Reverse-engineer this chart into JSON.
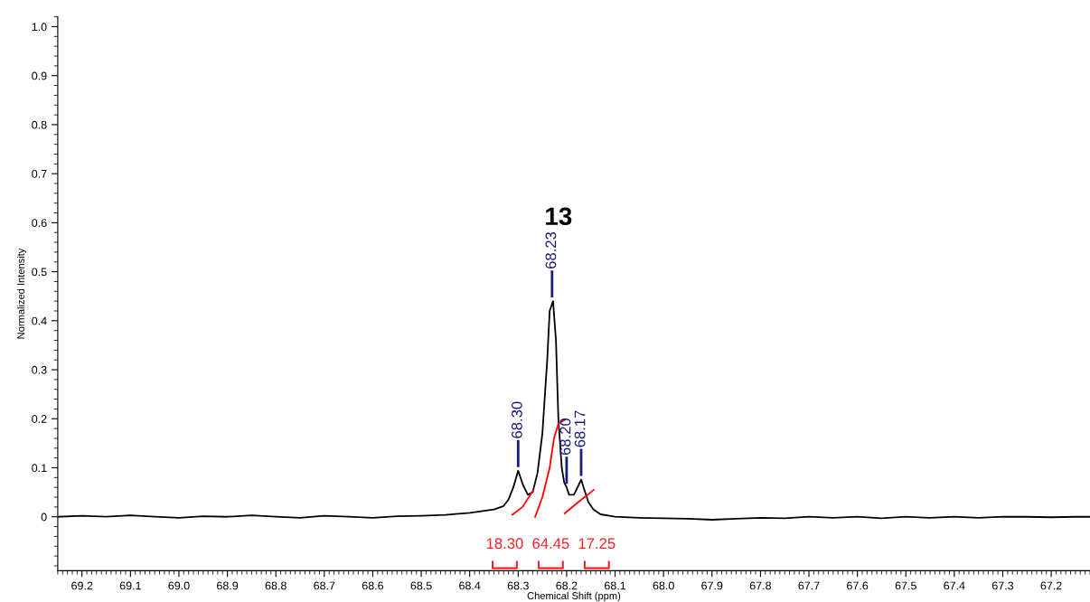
{
  "chart_data": {
    "type": "line",
    "title": "13",
    "xlabel": "Chemical Shift (ppm)",
    "ylabel": "Normalized Intensity",
    "xlim": [
      69.25,
      67.12
    ],
    "ylim": [
      -0.11,
      1.02
    ],
    "xticks": [
      69.2,
      69.1,
      {
        "value": 69.0,
        "label": "69.0"
      },
      68.9,
      68.8,
      68.7,
      68.6,
      68.5,
      68.4,
      68.3,
      68.2,
      68.1,
      {
        "value": 68.0,
        "label": "68.0"
      },
      67.9,
      67.8,
      67.7,
      67.6,
      67.5,
      67.4,
      67.3,
      67.2
    ],
    "yticks": [
      0,
      0.1,
      0.2,
      0.3,
      0.4,
      0.5,
      0.6,
      0.7,
      0.8,
      0.9,
      {
        "value": 1.0,
        "label": "1.0"
      }
    ],
    "grid": false,
    "marker": "none",
    "line_style": "solid",
    "series": [
      {
        "color": "#000000",
        "x": [
          69.25,
          69.2,
          69.15,
          69.1,
          69.05,
          69.0,
          68.95,
          68.9,
          68.85,
          68.8,
          68.75,
          68.7,
          68.65,
          68.6,
          68.55,
          68.5,
          68.45,
          68.4,
          68.37,
          68.35,
          68.33,
          68.32,
          68.31,
          68.3,
          68.29,
          68.28,
          68.27,
          68.26,
          68.25,
          68.24,
          68.235,
          68.228,
          68.222,
          68.217,
          68.21,
          68.205,
          68.2,
          68.195,
          68.185,
          68.175,
          68.17,
          68.165,
          68.155,
          68.145,
          68.13,
          68.1,
          68.05,
          68.0,
          67.95,
          67.9,
          67.85,
          67.8,
          67.75,
          67.7,
          67.65,
          67.6,
          67.55,
          67.5,
          67.45,
          67.4,
          67.35,
          67.3,
          67.25,
          67.2,
          67.15,
          67.12
        ],
        "values": [
          0.0,
          0.002,
          0.0,
          0.003,
          0.0,
          -0.002,
          0.001,
          0.0,
          0.003,
          0.0,
          -0.002,
          0.002,
          0.0,
          -0.002,
          0.001,
          0.002,
          0.004,
          0.008,
          0.012,
          0.015,
          0.022,
          0.035,
          0.06,
          0.094,
          0.065,
          0.045,
          0.05,
          0.09,
          0.17,
          0.32,
          0.42,
          0.44,
          0.36,
          0.2,
          0.1,
          0.07,
          0.06,
          0.045,
          0.045,
          0.065,
          0.076,
          0.06,
          0.03,
          0.015,
          0.005,
          0.0,
          -0.002,
          -0.003,
          -0.004,
          -0.006,
          -0.004,
          -0.002,
          -0.003,
          0.0,
          -0.002,
          0.0,
          -0.003,
          0.0,
          -0.002,
          0.0,
          -0.002,
          0.0,
          0.0,
          -0.001,
          0.0,
          0.0
        ]
      },
      {
        "color": "#ff0000",
        "x": [
          68.312,
          68.291,
          68.269
        ],
        "values": [
          0.004,
          0.02,
          0.054
        ]
      },
      {
        "color": "#ff0000",
        "x": [
          68.265,
          68.25,
          68.235,
          68.226,
          68.217,
          68.204
        ],
        "values": [
          0.0,
          0.04,
          0.1,
          0.16,
          0.19,
          0.198
        ]
      },
      {
        "color": "#ff0000",
        "x": [
          68.204,
          68.176,
          68.144
        ],
        "values": [
          0.007,
          0.03,
          0.055
        ]
      }
    ],
    "annotations": [
      {
        "text": "68.30",
        "x": 68.3,
        "y": 0.094
      },
      {
        "text": "68.23",
        "x": 68.23,
        "y": 0.44
      },
      {
        "text": "68.20",
        "x": 68.2,
        "y": 0.06
      },
      {
        "text": "68.17",
        "x": 68.17,
        "y": 0.076
      },
      "18.30",
      "64.45",
      "17.25"
    ]
  }
}
